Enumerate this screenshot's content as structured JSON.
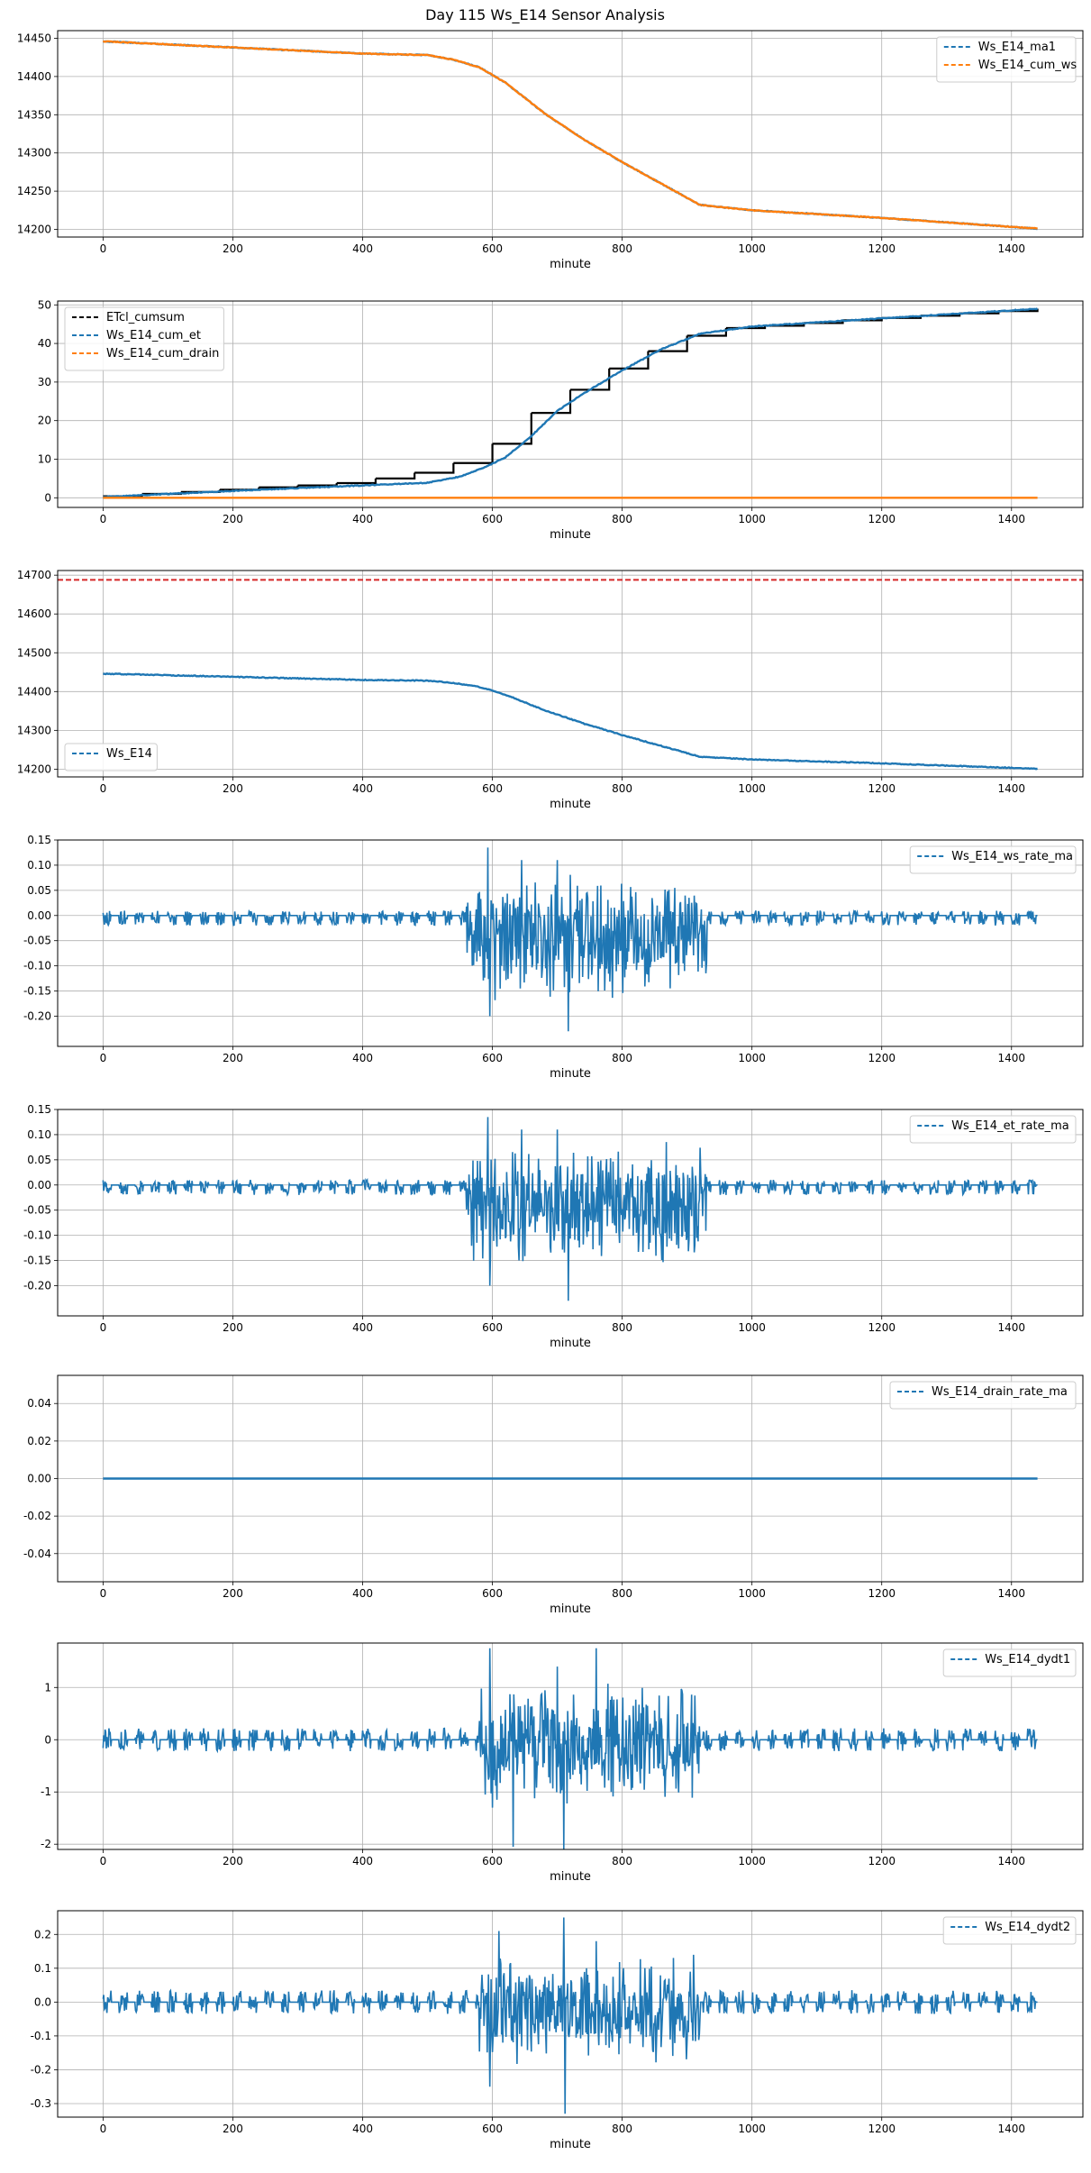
{
  "figure_title": "Day 115 Ws_E14 Sensor Analysis",
  "colors": {
    "blue": "#1f77b4",
    "orange": "#ff7f0e",
    "black": "#000000",
    "red": "#d62728",
    "grid": "#b0b0b0"
  },
  "chart_data": [
    {
      "type": "line",
      "xlabel": "minute",
      "xlim": [
        -70,
        1510
      ],
      "ylim": [
        14190,
        14460
      ],
      "xticks": [
        0,
        200,
        400,
        600,
        800,
        1000,
        1200,
        1400
      ],
      "yticks": [
        14200,
        14250,
        14300,
        14350,
        14400,
        14450
      ],
      "legend_position": "top-right",
      "series": [
        {
          "name": "Ws_E14_ma1",
          "color": "#1f77b4",
          "style": "dashed",
          "points": [
            [
              0,
              14446
            ],
            [
              200,
              14438
            ],
            [
              400,
              14430
            ],
            [
              500,
              14428
            ],
            [
              540,
              14422
            ],
            [
              580,
              14412
            ],
            [
              620,
              14392
            ],
            [
              680,
              14352
            ],
            [
              740,
              14318
            ],
            [
              800,
              14288
            ],
            [
              860,
              14260
            ],
            [
              920,
              14232
            ],
            [
              1000,
              14225
            ],
            [
              1200,
              14215
            ],
            [
              1440,
              14201
            ]
          ]
        },
        {
          "name": "Ws_E14_cum_ws",
          "color": "#ff7f0e",
          "style": "dashed",
          "points": [
            [
              0,
              14446
            ],
            [
              200,
              14438
            ],
            [
              400,
              14430
            ],
            [
              500,
              14428
            ],
            [
              540,
              14422
            ],
            [
              580,
              14412
            ],
            [
              620,
              14392
            ],
            [
              680,
              14352
            ],
            [
              740,
              14318
            ],
            [
              800,
              14288
            ],
            [
              860,
              14260
            ],
            [
              920,
              14232
            ],
            [
              1000,
              14225
            ],
            [
              1200,
              14215
            ],
            [
              1440,
              14201
            ]
          ]
        }
      ]
    },
    {
      "type": "line",
      "xlabel": "minute",
      "xlim": [
        -70,
        1510
      ],
      "ylim": [
        -2.5,
        51
      ],
      "xticks": [
        0,
        200,
        400,
        600,
        800,
        1000,
        1200,
        1400
      ],
      "yticks": [
        0,
        10,
        20,
        30,
        40,
        50
      ],
      "legend_position": "top-left",
      "series": [
        {
          "name": "ETcl_cumsum",
          "color": "#000000",
          "style": "dashed",
          "step": true,
          "points": [
            [
              0,
              0.4
            ],
            [
              60,
              1.0
            ],
            [
              120,
              1.5
            ],
            [
              180,
              2.1
            ],
            [
              240,
              2.7
            ],
            [
              300,
              3.2
            ],
            [
              360,
              3.8
            ],
            [
              420,
              5.0
            ],
            [
              480,
              6.5
            ],
            [
              540,
              9.0
            ],
            [
              600,
              14.0
            ],
            [
              660,
              22.0
            ],
            [
              720,
              28.0
            ],
            [
              780,
              33.5
            ],
            [
              840,
              38.0
            ],
            [
              900,
              42.0
            ],
            [
              960,
              44.0
            ],
            [
              1020,
              44.6
            ],
            [
              1080,
              45.3
            ],
            [
              1140,
              46.0
            ],
            [
              1200,
              46.6
            ],
            [
              1260,
              47.2
            ],
            [
              1320,
              47.8
            ],
            [
              1380,
              48.4
            ],
            [
              1440,
              49.0
            ]
          ]
        },
        {
          "name": "Ws_E14_cum_et",
          "color": "#1f77b4",
          "style": "dashed",
          "points": [
            [
              0,
              0.2
            ],
            [
              200,
              1.8
            ],
            [
              400,
              3.2
            ],
            [
              500,
              3.9
            ],
            [
              550,
              5.5
            ],
            [
              590,
              8.0
            ],
            [
              620,
              10.5
            ],
            [
              660,
              16.0
            ],
            [
              700,
              22.5
            ],
            [
              740,
              27.0
            ],
            [
              800,
              33.0
            ],
            [
              860,
              38.5
            ],
            [
              920,
              42.5
            ],
            [
              1000,
              44.4
            ],
            [
              1200,
              46.5
            ],
            [
              1440,
              49.0
            ]
          ]
        },
        {
          "name": "Ws_E14_cum_drain",
          "color": "#ff7f0e",
          "style": "dashed",
          "points": [
            [
              0,
              0
            ],
            [
              1440,
              0
            ]
          ]
        }
      ]
    },
    {
      "type": "line",
      "xlabel": "minute",
      "xlim": [
        -70,
        1510
      ],
      "ylim": [
        14180,
        14712
      ],
      "xticks": [
        0,
        200,
        400,
        600,
        800,
        1000,
        1200,
        1400
      ],
      "yticks": [
        14200,
        14300,
        14400,
        14500,
        14600,
        14700
      ],
      "legend_position": "bottom-left",
      "hline": {
        "y": 14688,
        "color": "#d62728",
        "style": "dashed"
      },
      "series": [
        {
          "name": "Ws_E14",
          "color": "#1f77b4",
          "style": "dashed",
          "points": [
            [
              0,
              14446
            ],
            [
              200,
              14438
            ],
            [
              400,
              14430
            ],
            [
              500,
              14428
            ],
            [
              540,
              14422
            ],
            [
              580,
              14412
            ],
            [
              620,
              14392
            ],
            [
              680,
              14352
            ],
            [
              740,
              14318
            ],
            [
              800,
              14288
            ],
            [
              860,
              14260
            ],
            [
              920,
              14232
            ],
            [
              1000,
              14225
            ],
            [
              1200,
              14215
            ],
            [
              1440,
              14201
            ]
          ]
        }
      ]
    },
    {
      "type": "line",
      "xlabel": "minute",
      "xlim": [
        -70,
        1510
      ],
      "ylim": [
        -0.26,
        0.15
      ],
      "xticks": [
        0,
        200,
        400,
        600,
        800,
        1000,
        1200,
        1400
      ],
      "yticks": [
        -0.2,
        -0.15,
        -0.1,
        -0.05,
        0.0,
        0.05,
        0.1,
        0.15
      ],
      "ytick_decimals": 2,
      "legend_position": "top-right",
      "series": [
        {
          "name": "Ws_E14_ws_rate_ma",
          "color": "#1f77b4",
          "style": "dashed",
          "noise": {
            "quiet_amp": 0.015,
            "quiet_offset": -0.005,
            "active_range": [
              560,
              930
            ],
            "active_amp": 0.1,
            "active_offset": -0.04,
            "extremes": [
              [
                593,
                0.135
              ],
              [
                596,
                -0.2
              ],
              [
                717,
                -0.23
              ],
              [
                700,
                0.11
              ],
              [
                645,
                0.11
              ]
            ]
          }
        }
      ]
    },
    {
      "type": "line",
      "xlabel": "minute",
      "xlim": [
        -70,
        1510
      ],
      "ylim": [
        -0.26,
        0.15
      ],
      "xticks": [
        0,
        200,
        400,
        600,
        800,
        1000,
        1200,
        1400
      ],
      "yticks": [
        -0.2,
        -0.15,
        -0.1,
        -0.05,
        0.0,
        0.05,
        0.1,
        0.15
      ],
      "ytick_decimals": 2,
      "legend_position": "top-right",
      "series": [
        {
          "name": "Ws_E14_et_rate_ma",
          "color": "#1f77b4",
          "style": "dashed",
          "noise": {
            "quiet_amp": 0.015,
            "quiet_offset": -0.005,
            "active_range": [
              560,
              930
            ],
            "active_amp": 0.1,
            "active_offset": -0.04,
            "extremes": [
              [
                593,
                0.135
              ],
              [
                596,
                -0.2
              ],
              [
                717,
                -0.23
              ],
              [
                700,
                0.11
              ],
              [
                645,
                0.11
              ]
            ]
          }
        }
      ]
    },
    {
      "type": "line",
      "xlabel": "minute",
      "xlim": [
        -70,
        1510
      ],
      "ylim": [
        -0.055,
        0.055
      ],
      "xticks": [
        0,
        200,
        400,
        600,
        800,
        1000,
        1200,
        1400
      ],
      "yticks": [
        -0.04,
        -0.02,
        0.0,
        0.02,
        0.04
      ],
      "ytick_decimals": 2,
      "legend_position": "top-right",
      "series": [
        {
          "name": "Ws_E14_drain_rate_ma",
          "color": "#1f77b4",
          "style": "dashed",
          "points": [
            [
              0,
              0
            ],
            [
              1440,
              0
            ]
          ]
        }
      ]
    },
    {
      "type": "line",
      "xlabel": "minute",
      "xlim": [
        -70,
        1510
      ],
      "ylim": [
        -2.1,
        1.85
      ],
      "xticks": [
        0,
        200,
        400,
        600,
        800,
        1000,
        1200,
        1400
      ],
      "yticks": [
        -2,
        -1,
        0,
        1
      ],
      "ytick_decimals": 0,
      "legend_position": "top-right",
      "series": [
        {
          "name": "Ws_E14_dydt1",
          "color": "#1f77b4",
          "style": "dashed",
          "noise": {
            "quiet_amp": 0.22,
            "quiet_offset": 0,
            "active_range": [
              580,
              920
            ],
            "active_amp": 1.0,
            "active_offset": -0.1,
            "extremes": [
              [
                596,
                1.75
              ],
              [
                600,
                -1.3
              ],
              [
                632,
                -2.05
              ],
              [
                710,
                -2.1
              ],
              [
                760,
                1.75
              ],
              [
                700,
                1.4
              ]
            ]
          }
        }
      ]
    },
    {
      "type": "line",
      "xlabel": "minute",
      "xlim": [
        -70,
        1510
      ],
      "ylim": [
        -0.34,
        0.27
      ],
      "xticks": [
        0,
        200,
        400,
        600,
        800,
        1000,
        1200,
        1400
      ],
      "yticks": [
        -0.3,
        -0.2,
        -0.1,
        0.0,
        0.1,
        0.2
      ],
      "ytick_decimals": 1,
      "legend_position": "top-right",
      "series": [
        {
          "name": "Ws_E14_dydt2",
          "color": "#1f77b4",
          "style": "dashed",
          "noise": {
            "quiet_amp": 0.035,
            "quiet_offset": 0,
            "active_range": [
              580,
              920
            ],
            "active_amp": 0.13,
            "active_offset": -0.02,
            "extremes": [
              [
                596,
                -0.25
              ],
              [
                610,
                0.21
              ],
              [
                710,
                0.25
              ],
              [
                712,
                -0.33
              ],
              [
                760,
                0.18
              ]
            ]
          }
        }
      ]
    }
  ]
}
